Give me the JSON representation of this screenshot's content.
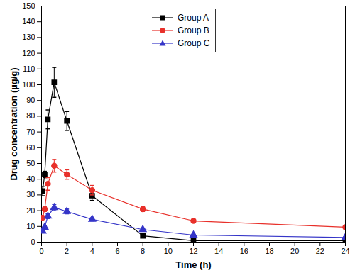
{
  "chart_data": {
    "type": "line",
    "x_label": "Time (h)",
    "y_label": "Drug concentration (µg/g)",
    "x": [
      0.083,
      0.25,
      0.5,
      1,
      2,
      4,
      8,
      12,
      24
    ],
    "xlim": [
      0,
      24
    ],
    "xticks": [
      0,
      2,
      4,
      6,
      8,
      10,
      12,
      14,
      16,
      18,
      20,
      22,
      24
    ],
    "ylim": [
      0,
      150
    ],
    "yticks": [
      0,
      10,
      20,
      30,
      40,
      50,
      60,
      70,
      80,
      90,
      100,
      110,
      120,
      130,
      140,
      150
    ],
    "grid": false,
    "legend": "top",
    "series": [
      {
        "name": "Group A",
        "color": "#000000",
        "marker": "square",
        "values": [
          32.5,
          43,
          78,
          101.5,
          77,
          29.5,
          4,
          1,
          1
        ],
        "errors": [
          3,
          2,
          6,
          9.5,
          6,
          3,
          1,
          0.5,
          0.5
        ]
      },
      {
        "name": "Group B",
        "color": "#e8302a",
        "marker": "circle",
        "values": [
          15.5,
          21,
          37,
          48.5,
          43,
          33,
          21,
          13.5,
          9.5
        ],
        "errors": [
          1,
          1.5,
          4,
          4,
          3,
          3,
          1.5,
          1,
          1
        ]
      },
      {
        "name": "Group C",
        "color": "#3535c8",
        "marker": "triangle",
        "values": [
          7,
          9.5,
          16.5,
          22,
          19.5,
          14.5,
          8,
          4.5,
          3
        ],
        "errors": [
          1,
          1,
          1.5,
          2,
          1.5,
          1,
          0.5,
          0.5,
          0.5
        ]
      }
    ]
  }
}
